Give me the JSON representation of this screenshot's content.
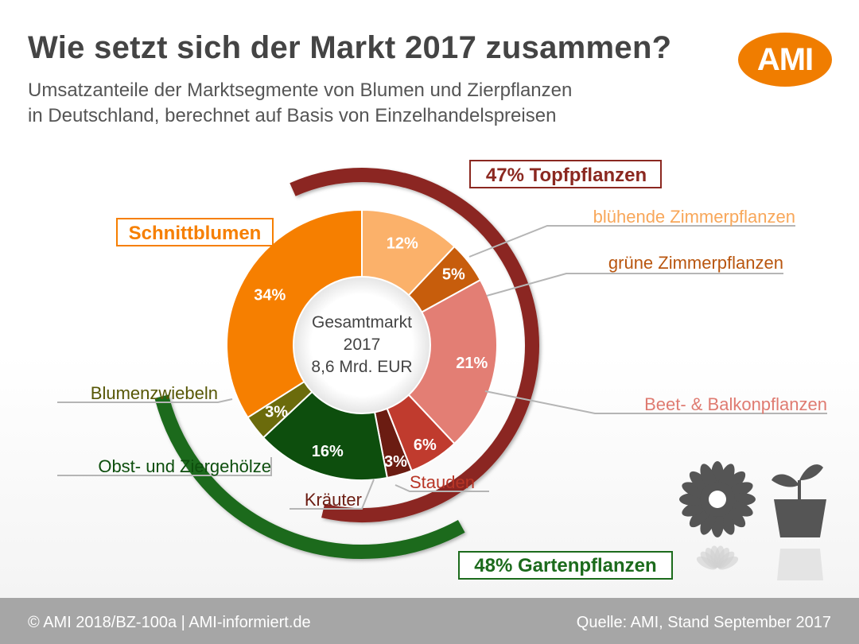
{
  "header": {
    "title": "Wie setzt sich der Markt 2017 zusammen?",
    "subtitle_line1": "Umsatzanteile der Marktsegmente von Blumen und Zierpflanzen",
    "subtitle_line2": "in Deutschland, berechnet auf Basis von Einzelhandelspreisen",
    "logo_text": "AMI"
  },
  "footer": {
    "left": "© AMI 2018/BZ-100a | AMI-informiert.de",
    "right": "Quelle: AMI, Stand September 2017"
  },
  "chart_data": {
    "type": "pie",
    "variant": "donut",
    "center_text": [
      "Gesamtmarkt",
      "2017",
      "8,6 Mrd. EUR"
    ],
    "segments": [
      {
        "name": "blühende Zimmerpflanzen",
        "value": 12,
        "label": "12%",
        "color": "#fbb16a",
        "label_color": "#f8a75a",
        "group": "Topfpflanzen"
      },
      {
        "name": "grüne Zimmerpflanzen",
        "value": 5,
        "label": "5%",
        "color": "#c75d0c",
        "label_color": "#b9560f",
        "group": "Topfpflanzen"
      },
      {
        "name": "Beet- & Balkonpflanzen",
        "value": 21,
        "label": "21%",
        "color": "#e37e74",
        "label_color": "#df7b71",
        "group": "Topfpflanzen"
      },
      {
        "name": "Stauden",
        "value": 6,
        "label": "6%",
        "color": "#c03b2e",
        "label_color": "#b83526",
        "group": "Topfpflanzen"
      },
      {
        "name": "Kräuter",
        "value": 3,
        "label": "3%",
        "color": "#6b1c12",
        "label_color": "#6b1c12",
        "group": "Topfpflanzen"
      },
      {
        "name": "Obst- und Ziergehölze",
        "value": 16,
        "label": "16%",
        "color": "#0d4e0d",
        "label_color": "#0d4e0d",
        "group": "Gartenpflanzen"
      },
      {
        "name": "Blumenzwiebeln",
        "value": 3,
        "label": "3%",
        "color": "#6b6b0c",
        "label_color": "#575705",
        "group": "Gartenpflanzen"
      },
      {
        "name": "Schnittblumen",
        "value": 34,
        "label": "34%",
        "color": "#f67f00",
        "label_color": "#f67f00",
        "group": null
      }
    ],
    "arcs": [
      {
        "name": "Topfpflanzen",
        "label": "47% Topfpflanzen",
        "value": 47,
        "color": "#8b2820"
      },
      {
        "name": "Gartenpflanzen",
        "label": "48% Gartenpflanzen",
        "value": 48,
        "color": "#1c6b1c"
      }
    ],
    "icons": [
      "flower-icon",
      "potted-plant-icon"
    ]
  }
}
